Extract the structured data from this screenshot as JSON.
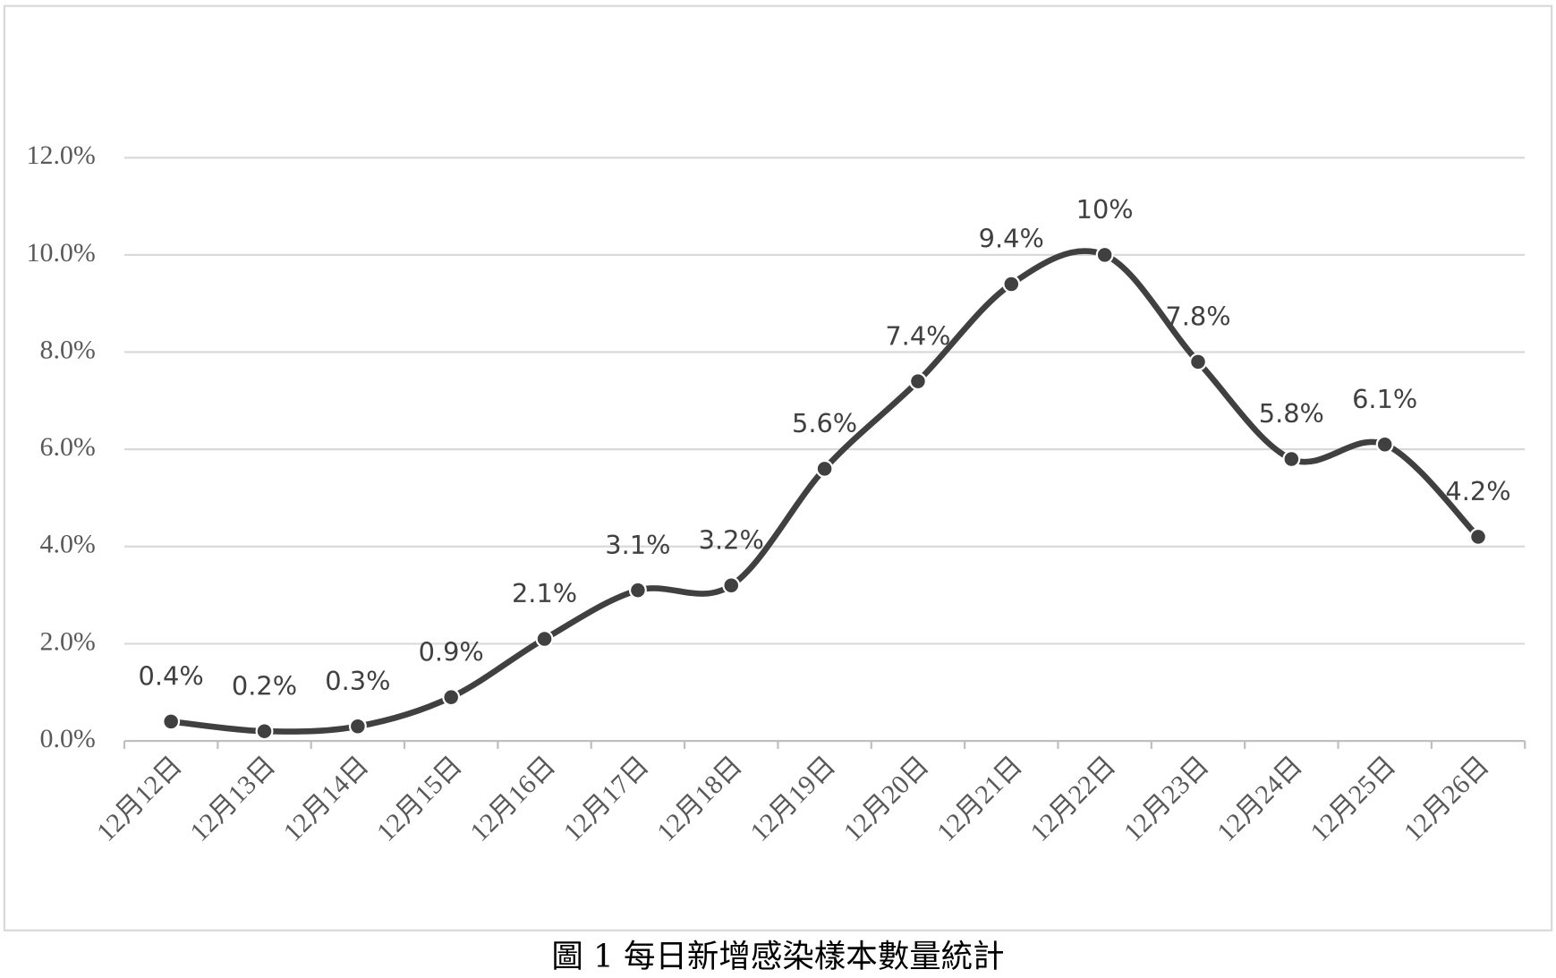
{
  "chart_data": {
    "type": "line",
    "title": "圖 1  每日新增感染樣本數量統計",
    "categories": [
      "12月12日",
      "12月13日",
      "12月14日",
      "12月15日",
      "12月16日",
      "12月17日",
      "12月18日",
      "12月19日",
      "12月20日",
      "12月21日",
      "12月22日",
      "12月23日",
      "12月24日",
      "12月25日",
      "12月26日"
    ],
    "values": [
      0.4,
      0.2,
      0.3,
      0.9,
      2.1,
      3.1,
      3.2,
      5.6,
      7.4,
      9.4,
      10,
      7.8,
      5.8,
      6.1,
      4.2
    ],
    "value_labels": [
      "0.4%",
      "0.2%",
      "0.3%",
      "0.9%",
      "2.1%",
      "3.1%",
      "3.2%",
      "5.6%",
      "7.4%",
      "9.4%",
      "10%",
      "7.8%",
      "5.8%",
      "6.1%",
      "4.2%"
    ],
    "color": "#404040",
    "smooth": true,
    "grid": true,
    "ylim": [
      0,
      12
    ],
    "yticks": [
      {
        "value": 0,
        "label": "0.0%"
      },
      {
        "value": 2,
        "label": "2.0%"
      },
      {
        "value": 4,
        "label": "4.0%"
      },
      {
        "value": 6,
        "label": "6.0%"
      },
      {
        "value": 8,
        "label": "8.0%"
      },
      {
        "value": 10,
        "label": "10.0%"
      },
      {
        "value": 12,
        "label": "12.0%"
      }
    ]
  }
}
